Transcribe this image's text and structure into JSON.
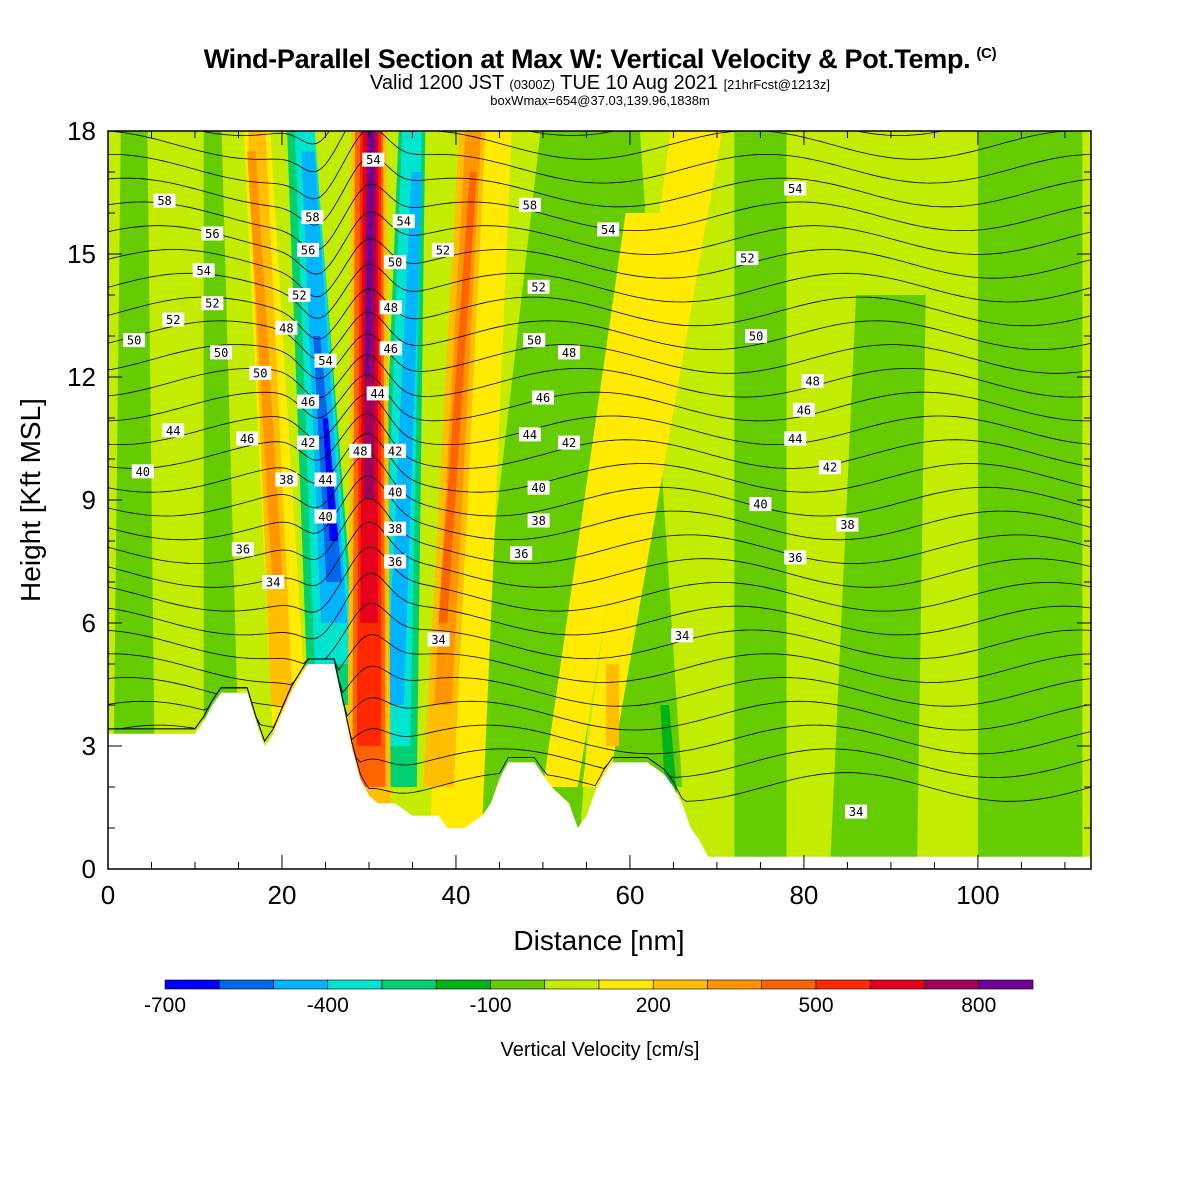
{
  "header": {
    "title": "Wind-Parallel Section at Max W: Vertical Velocity & Pot.Temp.",
    "copyright": "(C)",
    "valid_prefix": "Valid 1200 JST",
    "valid_utc": "(0300Z)",
    "valid_date": "TUE 10 Aug 2021",
    "forecast": "[21hrFcst@1213z]",
    "boxinfo": "boxWmax=654@37.03,139.96,1838m"
  },
  "colorbar": {
    "title": "Vertical Velocity [cm/s]",
    "tick_labels": [
      "-700",
      "-400",
      "-100",
      "200",
      "500",
      "800"
    ],
    "colors": [
      "#0000ff",
      "#0066ee",
      "#00b4ff",
      "#00e4d0",
      "#00d070",
      "#00b418",
      "#64cc00",
      "#c4ec00",
      "#ffea00",
      "#ffbe00",
      "#ff9600",
      "#ff6400",
      "#ff2800",
      "#e6001e",
      "#a0005a",
      "#6e0096"
    ]
  },
  "chart_data": {
    "type": "heatmap",
    "title": "Wind-Parallel Section at Max W: Vertical Velocity & Pot.Temp.",
    "xlabel": "Distance [nm]",
    "ylabel": "Height [Kft MSL]",
    "xlim": [
      0,
      113
    ],
    "ylim": [
      0,
      18
    ],
    "xticks": [
      0,
      20,
      40,
      60,
      80,
      100
    ],
    "yticks": [
      0,
      3,
      6,
      9,
      12,
      15,
      18
    ],
    "xtick_labels": [
      "0",
      "20",
      "40",
      "60",
      "80",
      "100"
    ],
    "ytick_labels": [
      "0",
      "3",
      "6",
      "9",
      "12",
      "15",
      "18"
    ],
    "terrain_profile": [
      [
        0,
        3.3
      ],
      [
        10,
        3.3
      ],
      [
        11,
        3.6
      ],
      [
        12,
        4.0
      ],
      [
        13,
        4.3
      ],
      [
        16,
        4.3
      ],
      [
        17,
        3.6
      ],
      [
        18,
        3.0
      ],
      [
        19,
        3.3
      ],
      [
        21,
        4.3
      ],
      [
        23,
        5.0
      ],
      [
        26,
        5.0
      ],
      [
        27,
        4.0
      ],
      [
        28,
        3.0
      ],
      [
        29,
        2.2
      ],
      [
        30,
        1.8
      ],
      [
        31,
        1.6
      ],
      [
        33,
        1.6
      ],
      [
        35,
        1.3
      ],
      [
        38,
        1.3
      ],
      [
        39,
        1.0
      ],
      [
        41,
        1.0
      ],
      [
        43,
        1.3
      ],
      [
        44,
        1.6
      ],
      [
        45,
        2.2
      ],
      [
        46,
        2.6
      ],
      [
        49,
        2.6
      ],
      [
        51,
        2.0
      ],
      [
        53,
        1.6
      ],
      [
        54,
        1.0
      ],
      [
        55,
        1.3
      ],
      [
        56,
        1.9
      ],
      [
        57,
        2.3
      ],
      [
        58,
        2.6
      ],
      [
        62,
        2.6
      ],
      [
        64,
        2.3
      ],
      [
        65,
        2.0
      ],
      [
        66,
        1.6
      ],
      [
        67,
        1.0
      ],
      [
        68,
        0.7
      ],
      [
        69,
        0.3
      ],
      [
        113,
        0.3
      ]
    ],
    "vertical_velocity_features": [
      {
        "name": "main updraft core",
        "x": 30,
        "x_top": 30,
        "value": 654
      },
      {
        "name": "downdraft west of updraft",
        "x": 25,
        "x_top": 22,
        "value": -500
      },
      {
        "name": "downdraft east of updraft",
        "x": 33,
        "x_top": 35,
        "value": -400
      },
      {
        "name": "updraft band",
        "x": 38,
        "x_top": 42,
        "value": 350
      },
      {
        "name": "updraft band",
        "x": 20,
        "x_top": 17,
        "value": 250
      },
      {
        "name": "weak updraft",
        "x": 57,
        "x_top": 67,
        "value": 150
      },
      {
        "name": "weak downdraft",
        "x": 62,
        "x_top": 58,
        "value": -100
      }
    ],
    "potential_temperature_contour_labels": [
      {
        "label": "58",
        "x": 6.5,
        "y": 16.3
      },
      {
        "label": "56",
        "x": 12,
        "y": 15.5
      },
      {
        "label": "54",
        "x": 11,
        "y": 14.6
      },
      {
        "label": "52",
        "x": 12,
        "y": 13.8
      },
      {
        "label": "52",
        "x": 7.5,
        "y": 13.4
      },
      {
        "label": "50",
        "x": 3,
        "y": 12.9
      },
      {
        "label": "50",
        "x": 13,
        "y": 12.6
      },
      {
        "label": "44",
        "x": 7.5,
        "y": 10.7
      },
      {
        "label": "40",
        "x": 4,
        "y": 9.7
      },
      {
        "label": "46",
        "x": 16,
        "y": 10.5
      },
      {
        "label": "50",
        "x": 17.5,
        "y": 12.1
      },
      {
        "label": "48",
        "x": 20.5,
        "y": 13.2
      },
      {
        "label": "38",
        "x": 20.5,
        "y": 9.5
      },
      {
        "label": "36",
        "x": 15.5,
        "y": 7.8
      },
      {
        "label": "34",
        "x": 19,
        "y": 7.0
      },
      {
        "label": "58",
        "x": 23.5,
        "y": 15.9
      },
      {
        "label": "56",
        "x": 23,
        "y": 15.1
      },
      {
        "label": "52",
        "x": 22,
        "y": 14.0
      },
      {
        "label": "54",
        "x": 25,
        "y": 12.4
      },
      {
        "label": "46",
        "x": 23,
        "y": 11.4
      },
      {
        "label": "42",
        "x": 23,
        "y": 10.4
      },
      {
        "label": "44",
        "x": 25,
        "y": 9.5
      },
      {
        "label": "40",
        "x": 25,
        "y": 8.6
      },
      {
        "label": "54",
        "x": 30.5,
        "y": 17.3
      },
      {
        "label": "54",
        "x": 34,
        "y": 15.8
      },
      {
        "label": "50",
        "x": 33,
        "y": 14.8
      },
      {
        "label": "48",
        "x": 32.5,
        "y": 13.7
      },
      {
        "label": "46",
        "x": 32.5,
        "y": 12.7
      },
      {
        "label": "44",
        "x": 31,
        "y": 11.6
      },
      {
        "label": "48",
        "x": 29,
        "y": 10.2
      },
      {
        "label": "42",
        "x": 33,
        "y": 10.2
      },
      {
        "label": "40",
        "x": 33,
        "y": 9.2
      },
      {
        "label": "38",
        "x": 33,
        "y": 8.3
      },
      {
        "label": "36",
        "x": 33,
        "y": 7.5
      },
      {
        "label": "52",
        "x": 38.5,
        "y": 15.1
      },
      {
        "label": "34",
        "x": 38,
        "y": 5.6
      },
      {
        "label": "58",
        "x": 48.5,
        "y": 16.2
      },
      {
        "label": "54",
        "x": 57.5,
        "y": 15.6
      },
      {
        "label": "52",
        "x": 49.5,
        "y": 14.2
      },
      {
        "label": "50",
        "x": 49,
        "y": 12.9
      },
      {
        "label": "48",
        "x": 53,
        "y": 12.6
      },
      {
        "label": "46",
        "x": 50,
        "y": 11.5
      },
      {
        "label": "44",
        "x": 48.5,
        "y": 10.6
      },
      {
        "label": "42",
        "x": 53,
        "y": 10.4
      },
      {
        "label": "40",
        "x": 49.5,
        "y": 9.3
      },
      {
        "label": "38",
        "x": 49.5,
        "y": 8.5
      },
      {
        "label": "36",
        "x": 47.5,
        "y": 7.7
      },
      {
        "label": "34",
        "x": 66,
        "y": 5.7
      },
      {
        "label": "54",
        "x": 79,
        "y": 16.6
      },
      {
        "label": "52",
        "x": 73.5,
        "y": 14.9
      },
      {
        "label": "50",
        "x": 74.5,
        "y": 13.0
      },
      {
        "label": "48",
        "x": 81,
        "y": 11.9
      },
      {
        "label": "46",
        "x": 80,
        "y": 11.2
      },
      {
        "label": "44",
        "x": 79,
        "y": 10.5
      },
      {
        "label": "42",
        "x": 83,
        "y": 9.8
      },
      {
        "label": "40",
        "x": 75,
        "y": 8.9
      },
      {
        "label": "38",
        "x": 85,
        "y": 8.4
      },
      {
        "label": "36",
        "x": 79,
        "y": 7.6
      },
      {
        "label": "34",
        "x": 86,
        "y": 1.4
      }
    ]
  }
}
